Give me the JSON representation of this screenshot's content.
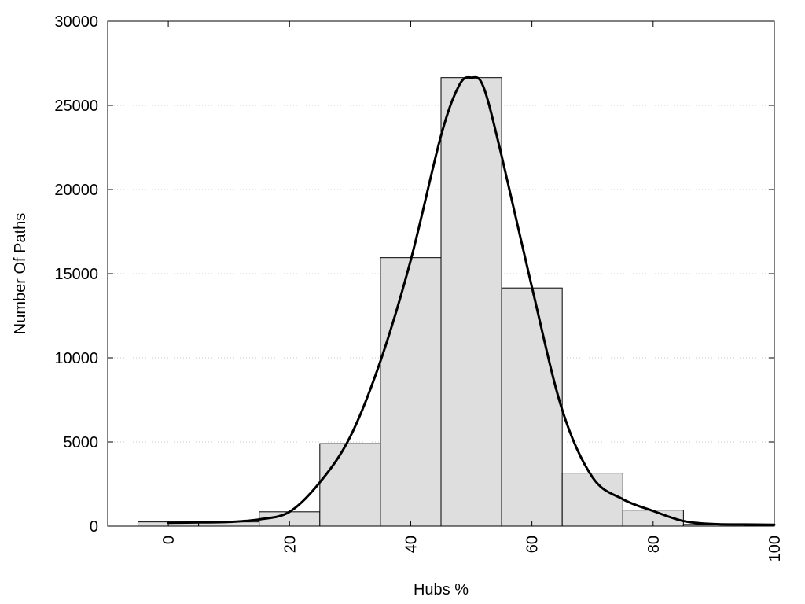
{
  "chart_data": {
    "type": "bar",
    "title": "",
    "xlabel": "Hubs %",
    "ylabel": "Number Of Paths",
    "xlim": [
      -10,
      100
    ],
    "ylim": [
      0,
      30000
    ],
    "grid": "horizontal dotted",
    "x_ticks": [
      "0",
      "20",
      "40",
      "60",
      "80",
      "100"
    ],
    "y_ticks": [
      "0",
      "5000",
      "10000",
      "15000",
      "20000",
      "25000",
      "30000"
    ],
    "bar_width": 10,
    "bar_color": "#dedede",
    "bars": [
      {
        "x": 0,
        "value": 250
      },
      {
        "x": 10,
        "value": 250
      },
      {
        "x": 20,
        "value": 850
      },
      {
        "x": 30,
        "value": 4900
      },
      {
        "x": 40,
        "value": 15950
      },
      {
        "x": 50,
        "value": 26650
      },
      {
        "x": 60,
        "value": 14150
      },
      {
        "x": 70,
        "value": 3150
      },
      {
        "x": 80,
        "value": 950
      },
      {
        "x": 90,
        "value": 100
      },
      {
        "x": 100,
        "value": 50
      }
    ],
    "curve": {
      "type": "line",
      "smooth": true,
      "color": "#000000",
      "x": [
        0,
        5,
        10,
        15,
        20,
        25,
        30,
        35,
        40,
        45,
        48,
        50,
        52,
        55,
        60,
        65,
        70,
        75,
        80,
        85,
        90,
        95,
        100
      ],
      "y": [
        200,
        220,
        250,
        400,
        850,
        2600,
        5300,
        9800,
        15800,
        23200,
        26200,
        26650,
        26100,
        22000,
        14200,
        6900,
        2900,
        1600,
        900,
        300,
        120,
        100,
        80
      ]
    }
  }
}
